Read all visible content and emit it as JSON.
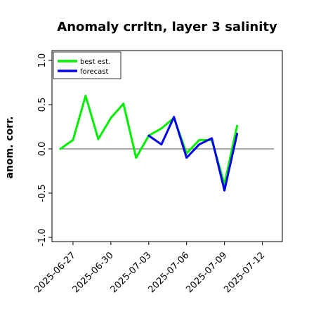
{
  "chart_data": {
    "type": "line",
    "title": "Anomaly crrltn, layer 3 salinity",
    "xlabel": "",
    "ylabel": "anom. corr.",
    "ylim": [
      -1.0,
      1.0
    ],
    "yticks": [
      "-1.0",
      "-0.5",
      "0.0",
      "0.5",
      "1.0"
    ],
    "xlim": [
      "2025-06-25",
      "2025-07-13"
    ],
    "xticks": [
      {
        "label": "2025-06-27",
        "date": "2025-06-27",
        "color": "#000000"
      },
      {
        "label": "2025-06-30",
        "date": "2025-06-30",
        "color": "#000000"
      },
      {
        "label": "2025-07-03",
        "date": "2025-07-03",
        "color": "#228b22"
      },
      {
        "label": "2025-07-06",
        "date": "2025-07-06",
        "color": "#000000"
      },
      {
        "label": "2025-07-09",
        "date": "2025-07-09",
        "color": "#000000"
      },
      {
        "label": "2025-07-12",
        "date": "2025-07-12",
        "color": "#000000"
      }
    ],
    "reference_line": 0.0,
    "legend": {
      "placement": "top-left"
    },
    "series": [
      {
        "name": "best est.",
        "color": "#00ee00",
        "x": [
          "2025-06-26",
          "2025-06-27",
          "2025-06-28",
          "2025-06-29",
          "2025-06-30",
          "2025-07-01",
          "2025-07-02",
          "2025-07-03",
          "2025-07-04",
          "2025-07-05",
          "2025-07-06",
          "2025-07-07",
          "2025-07-08",
          "2025-07-09",
          "2025-07-10"
        ],
        "values": [
          0.0,
          0.1,
          0.6,
          0.11,
          0.35,
          0.51,
          -0.1,
          0.15,
          0.23,
          0.35,
          -0.05,
          0.1,
          0.1,
          -0.4,
          0.26
        ]
      },
      {
        "name": "forecast",
        "color": "#0000ee",
        "x": [
          "2025-07-03",
          "2025-07-04",
          "2025-07-05",
          "2025-07-06",
          "2025-07-07",
          "2025-07-08",
          "2025-07-09",
          "2025-07-10"
        ],
        "values": [
          0.15,
          0.05,
          0.36,
          -0.1,
          0.05,
          0.12,
          -0.47,
          0.17
        ]
      }
    ]
  }
}
